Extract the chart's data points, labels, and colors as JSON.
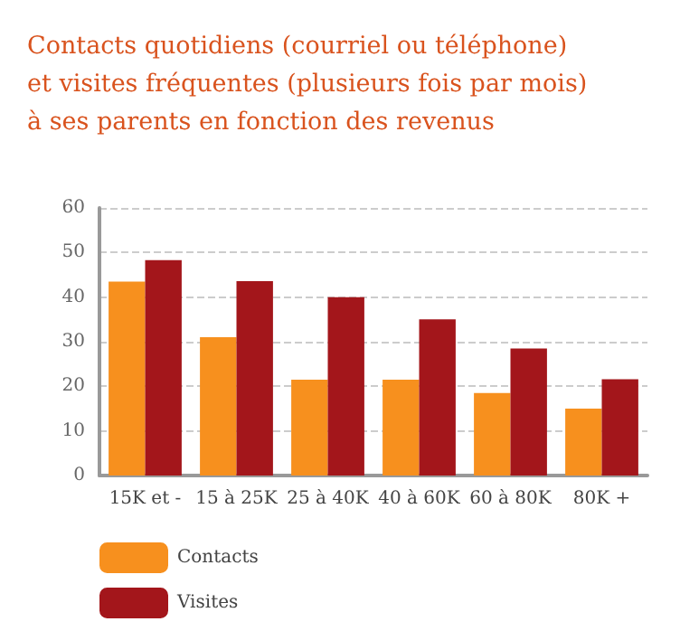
{
  "chart_data": {
    "type": "bar",
    "title": "Contacts quotidiens (courriel ou téléphone)\net visites fréquentes (plusieurs fois par mois)\nà ses parents en fonction des revenus",
    "categories": [
      "15K et -",
      "15 à 25K",
      "25 à 40K",
      "40 à 60K",
      "60 à 80K",
      "80K +"
    ],
    "series": [
      {
        "name": "Contacts",
        "color": "#f7901e",
        "values": [
          43.5,
          31,
          21.5,
          21.5,
          18.5,
          15
        ]
      },
      {
        "name": "Visites",
        "color": "#a3161b",
        "values": [
          48.3,
          43.6,
          40,
          35,
          28.5,
          21.6
        ]
      }
    ],
    "ylim": [
      0,
      60
    ],
    "yticks": [
      0,
      10,
      20,
      30,
      40,
      50,
      60
    ],
    "grid": "y",
    "legend": "bottom left"
  }
}
